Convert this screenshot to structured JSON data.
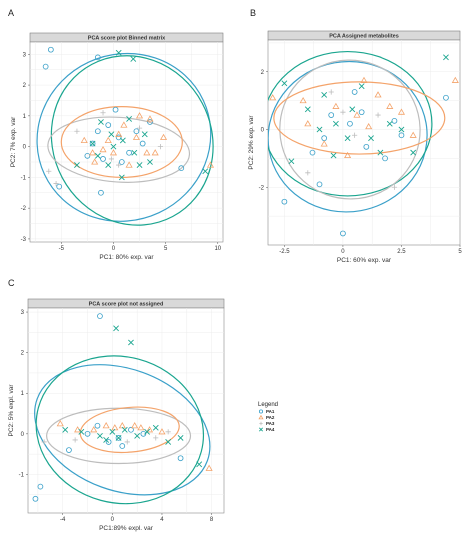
{
  "colors": {
    "PA1": "#3aa0c9",
    "PA2": "#f4a36a",
    "PA3": "#bdbdbd",
    "PA4": "#1aa58f"
  },
  "legend": {
    "title": "Legend",
    "entries": [
      {
        "label": "PA1",
        "shape": "circle"
      },
      {
        "label": "PA2",
        "shape": "triangle"
      },
      {
        "label": "PA3",
        "shape": "plus"
      },
      {
        "label": "PA4",
        "shape": "cross"
      }
    ]
  },
  "chart_data": [
    {
      "type": "scatter",
      "letter": "A",
      "title": "PCA score plot Binned matrix",
      "xlabel": "PC1: 80% exp. var",
      "ylabel": "PC2: 7% exp. var",
      "xlim": [
        -8,
        10.5
      ],
      "ylim": [
        -3.1,
        3.4
      ],
      "xticks": [
        -5,
        0,
        5,
        10
      ],
      "yticks": [
        -3,
        -2,
        -1,
        0,
        1,
        2,
        3
      ],
      "xtick_labels": [
        "-5",
        "0",
        "5",
        "10"
      ],
      "ytick_labels": [
        "-3",
        "-2",
        "-1",
        "0",
        "1",
        "2",
        "3"
      ],
      "ellipses": [
        {
          "group": "PA1",
          "cx": 1,
          "cy": 0.3,
          "rx": 8.4,
          "ry": 2.7,
          "angle": -25
        },
        {
          "group": "PA4",
          "cx": 1.8,
          "cy": 0.2,
          "rx": 7.6,
          "ry": 2.8,
          "angle": -28
        },
        {
          "group": "PA3",
          "cx": 0.5,
          "cy": -0.1,
          "rx": 6.8,
          "ry": 1.05,
          "angle": 4
        },
        {
          "group": "PA2",
          "cx": 0.8,
          "cy": 0.15,
          "rx": 5.8,
          "ry": 1.15,
          "angle": 0
        }
      ],
      "series": [
        {
          "name": "PA1",
          "points": [
            [
              -6,
              3.15
            ],
            [
              -6.5,
              2.6
            ],
            [
              -1.5,
              2.9
            ],
            [
              -5.2,
              -1.3
            ],
            [
              -1.2,
              -1.5
            ],
            [
              3.5,
              0.8
            ],
            [
              6.5,
              -0.7
            ],
            [
              -2,
              0.1
            ],
            [
              -1,
              -0.4
            ],
            [
              0.5,
              0.3
            ],
            [
              1.5,
              -0.2
            ],
            [
              2.2,
              0.5
            ],
            [
              -0.5,
              0.7
            ],
            [
              0.8,
              -0.5
            ],
            [
              -2.5,
              -0.3
            ],
            [
              2.8,
              0.1
            ],
            [
              -1.5,
              0.5
            ],
            [
              0.2,
              1.2
            ]
          ]
        },
        {
          "name": "PA2",
          "points": [
            [
              9.3,
              -0.6
            ],
            [
              4.8,
              0.3
            ],
            [
              3.5,
              0.9
            ],
            [
              2.2,
              0.3
            ],
            [
              1,
              0.7
            ],
            [
              -0.5,
              0.2
            ],
            [
              -1.8,
              -0.5
            ],
            [
              -2.8,
              0.2
            ],
            [
              1.5,
              -0.6
            ],
            [
              3.2,
              -0.2
            ],
            [
              0,
              -0.2
            ],
            [
              2.5,
              1.0
            ],
            [
              -1,
              -0.1
            ],
            [
              0.5,
              0.4
            ],
            [
              -2,
              -0.2
            ],
            [
              4,
              -0.2
            ]
          ]
        },
        {
          "name": "PA3",
          "points": [
            [
              -6.2,
              -0.8
            ],
            [
              -5.5,
              -1.2
            ],
            [
              0.5,
              -0.6
            ],
            [
              -3.5,
              0.5
            ],
            [
              2.5,
              0.6
            ],
            [
              4.5,
              0.0
            ],
            [
              -1,
              1.1
            ],
            [
              -0.2,
              -0.4
            ]
          ]
        },
        {
          "name": "PA4",
          "points": [
            [
              0.5,
              3.05
            ],
            [
              1.9,
              2.85
            ],
            [
              8.8,
              -0.8
            ],
            [
              -3.5,
              -0.6
            ],
            [
              -1.2,
              0.8
            ],
            [
              0.9,
              0.2
            ],
            [
              2.0,
              -0.2
            ],
            [
              3.0,
              0.4
            ],
            [
              -0.5,
              -0.6
            ],
            [
              1.5,
              0.9
            ],
            [
              -2.0,
              0.1
            ],
            [
              0.0,
              0.0
            ],
            [
              2.5,
              -0.6
            ],
            [
              -1.5,
              -0.3
            ],
            [
              0.8,
              -1.0
            ],
            [
              3.5,
              -0.5
            ],
            [
              -0.2,
              0.4
            ]
          ]
        }
      ]
    },
    {
      "type": "scatter",
      "letter": "B",
      "title": "PCA Assigned metabolites",
      "xlabel": "PC1: 60% exp. var",
      "ylabel": "PC2: 29% exp. var",
      "xlim": [
        -3.2,
        5.0
      ],
      "ylim": [
        -4.0,
        3.1
      ],
      "xticks": [
        -2.5,
        0,
        2.5,
        5
      ],
      "yticks": [
        -2,
        0,
        2
      ],
      "xtick_labels": [
        "-2.5",
        "0",
        "2.5",
        "5"
      ],
      "ytick_labels": [
        "-2",
        "0",
        "2"
      ],
      "ellipses": [
        {
          "group": "PA1",
          "cx": 0.2,
          "cy": -0.25,
          "rx": 3.4,
          "ry": 2.6,
          "angle": -10
        },
        {
          "group": "PA4",
          "cx": 0.2,
          "cy": 0.2,
          "rx": 3.6,
          "ry": 2.5,
          "angle": 0
        },
        {
          "group": "PA3",
          "cx": 0.3,
          "cy": 0.0,
          "rx": 3.0,
          "ry": 2.4,
          "angle": 20
        },
        {
          "group": "PA2",
          "cx": 0.7,
          "cy": 0.4,
          "rx": 3.65,
          "ry": 1.25,
          "angle": 0
        }
      ],
      "series": [
        {
          "name": "PA1",
          "points": [
            [
              0.0,
              -3.6
            ],
            [
              -2.5,
              -2.5
            ],
            [
              4.4,
              1.1
            ],
            [
              2.2,
              0.3
            ],
            [
              -1.3,
              -0.8
            ],
            [
              0.5,
              1.3
            ],
            [
              -0.5,
              0.5
            ],
            [
              1.0,
              -0.6
            ],
            [
              1.8,
              -1.0
            ],
            [
              -0.8,
              -0.3
            ],
            [
              0.3,
              0.2
            ],
            [
              -1.0,
              -1.9
            ],
            [
              2.5,
              -0.2
            ],
            [
              0.8,
              0.6
            ]
          ]
        },
        {
          "name": "PA2",
          "points": [
            [
              4.8,
              1.7
            ],
            [
              -3.0,
              1.1
            ],
            [
              -1.7,
              1.0
            ],
            [
              0.9,
              1.7
            ],
            [
              2.5,
              0.6
            ],
            [
              3.0,
              -0.2
            ],
            [
              -0.3,
              0.8
            ],
            [
              1.5,
              1.2
            ],
            [
              0.2,
              -0.9
            ],
            [
              -0.8,
              -0.5
            ],
            [
              1.1,
              0.1
            ],
            [
              2.0,
              0.8
            ],
            [
              -1.5,
              0.2
            ],
            [
              0.6,
              0.5
            ]
          ]
        },
        {
          "name": "PA3",
          "points": [
            [
              2.2,
              -2.0
            ],
            [
              -1.5,
              -1.5
            ],
            [
              0.5,
              -0.2
            ],
            [
              -0.5,
              1.3
            ],
            [
              1.5,
              0.5
            ],
            [
              0.0,
              0.6
            ]
          ]
        },
        {
          "name": "PA4",
          "points": [
            [
              4.4,
              2.5
            ],
            [
              -2.5,
              1.6
            ],
            [
              -2.2,
              -1.1
            ],
            [
              3.0,
              -0.8
            ],
            [
              -0.8,
              1.2
            ],
            [
              -0.3,
              0.2
            ],
            [
              0.4,
              0.7
            ],
            [
              1.2,
              -0.3
            ],
            [
              -0.4,
              -0.9
            ],
            [
              2.0,
              0.2
            ],
            [
              0.8,
              1.5
            ],
            [
              -1.0,
              0.0
            ],
            [
              1.6,
              -0.8
            ],
            [
              0.2,
              -0.3
            ],
            [
              -1.5,
              0.7
            ],
            [
              2.5,
              0.0
            ]
          ]
        }
      ]
    },
    {
      "type": "scatter",
      "letter": "C",
      "title": "PCA score plot not assigned",
      "xlabel": "PC1:89% expl. var",
      "ylabel": "PC2: 5% expl. var",
      "xlim": [
        -6.8,
        9.0
      ],
      "ylim": [
        -1.95,
        3.1
      ],
      "xticks": [
        -4,
        0,
        4,
        8
      ],
      "yticks": [
        -1,
        0,
        1,
        2,
        3
      ],
      "xtick_labels": [
        "-4",
        "0",
        "4",
        "8"
      ],
      "ytick_labels": [
        "-1",
        "0",
        "1",
        "2",
        "3"
      ],
      "ellipses": [
        {
          "group": "PA1",
          "cx": 0.8,
          "cy": 0.1,
          "rx": 7.3,
          "ry": 1.5,
          "angle": 20
        },
        {
          "group": "PA4",
          "cx": 0.6,
          "cy": 0.1,
          "rx": 6.8,
          "ry": 1.8,
          "angle": 15
        },
        {
          "group": "PA3",
          "cx": 0.5,
          "cy": -0.05,
          "rx": 5.8,
          "ry": 0.68,
          "angle": 0
        },
        {
          "group": "PA2",
          "cx": 1.4,
          "cy": 0.1,
          "rx": 4.0,
          "ry": 0.55,
          "angle": -5
        }
      ],
      "series": [
        {
          "name": "PA1",
          "points": [
            [
              -1.0,
              2.9
            ],
            [
              -6.2,
              -1.6
            ],
            [
              -5.8,
              -1.3
            ],
            [
              5.5,
              -0.6
            ],
            [
              -3.5,
              -0.4
            ],
            [
              -1.2,
              0.2
            ],
            [
              0.5,
              -0.1
            ],
            [
              1.5,
              0.1
            ],
            [
              -0.3,
              -0.2
            ],
            [
              2.5,
              0.0
            ],
            [
              -2.0,
              0.0
            ],
            [
              0.8,
              -0.3
            ]
          ]
        },
        {
          "name": "PA2",
          "points": [
            [
              7.8,
              -0.85
            ],
            [
              -4.2,
              0.25
            ],
            [
              -0.5,
              0.2
            ],
            [
              0.2,
              0.15
            ],
            [
              1.8,
              0.2
            ],
            [
              3.0,
              0.1
            ],
            [
              -1.5,
              0.1
            ],
            [
              2.3,
              0.15
            ],
            [
              0.8,
              0.2
            ],
            [
              -2.8,
              0.1
            ],
            [
              4.0,
              0.05
            ]
          ]
        },
        {
          "name": "PA3",
          "points": [
            [
              -5.5,
              -0.2
            ],
            [
              3.5,
              -0.1
            ],
            [
              -3.0,
              -0.15
            ],
            [
              1.2,
              -0.2
            ],
            [
              4.5,
              0.05
            ]
          ]
        },
        {
          "name": "PA4",
          "points": [
            [
              0.3,
              2.6
            ],
            [
              1.5,
              2.25
            ],
            [
              7.0,
              -0.75
            ],
            [
              -2.5,
              0.05
            ],
            [
              -1.0,
              -0.05
            ],
            [
              0.0,
              0.05
            ],
            [
              1.0,
              0.1
            ],
            [
              2.0,
              -0.05
            ],
            [
              3.5,
              0.15
            ],
            [
              4.5,
              -0.2
            ],
            [
              5.5,
              -0.1
            ],
            [
              -0.5,
              -0.15
            ],
            [
              2.8,
              0.05
            ],
            [
              -3.8,
              0.1
            ],
            [
              0.5,
              -0.1
            ]
          ]
        }
      ]
    }
  ]
}
